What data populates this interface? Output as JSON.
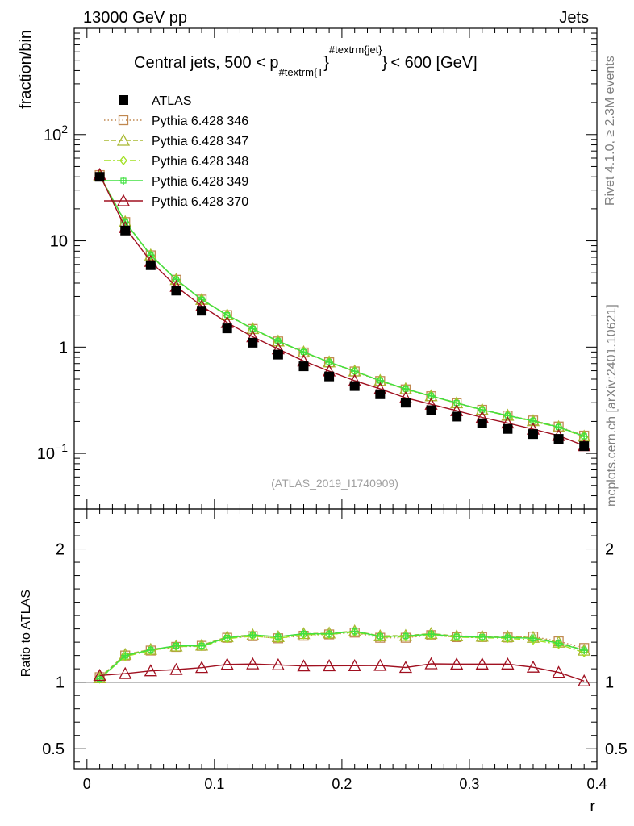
{
  "header": {
    "energy_label": "13000 GeV pp",
    "process_label": "Jets",
    "rivet_label": "Rivet 4.1.0, ≥ 2.3M events",
    "source_label": "mcplots.cern.ch [arXiv:2401.10621]",
    "analysis_label": "(ATLAS_2019_I1740909)"
  },
  "chart_data": {
    "type": "line",
    "title": "Central jets, 500 < p",
    "title_sub": "#textrm{T",
    "title_sup": "#textrm{jet}",
    "title_end": "< 600 [GeV]",
    "xlabel": "r",
    "ylabel": "fraction/bin",
    "ratio_ylabel": "Ratio to ATLAS",
    "xlim": [
      -0.01,
      0.4
    ],
    "ylim": [
      0.03,
      1000
    ],
    "ratio_ylim": [
      0.35,
      2.3
    ],
    "yscale": "log",
    "x_ticks": [
      "0",
      "0.1",
      "0.2",
      "0.3",
      "0.4"
    ],
    "ratio_ticks": [
      "0.5",
      "1",
      "2"
    ],
    "x": [
      0.01,
      0.03,
      0.05,
      0.07,
      0.09,
      0.11,
      0.13,
      0.15,
      0.17,
      0.19,
      0.21,
      0.23,
      0.25,
      0.27,
      0.29,
      0.31,
      0.33,
      0.35,
      0.37,
      0.39
    ],
    "data": {
      "name": "ATLAS",
      "color": "#000000",
      "values": [
        40,
        12.5,
        5.9,
        3.4,
        2.2,
        1.5,
        1.1,
        0.85,
        0.66,
        0.53,
        0.43,
        0.36,
        0.3,
        0.255,
        0.222,
        0.192,
        0.17,
        0.152,
        0.137,
        0.117
      ]
    },
    "series": [
      {
        "name": "Pythia 6.428 346",
        "color": "#c08850",
        "marker": "square",
        "dash": "1.5,3",
        "values": [
          41.5,
          15.0,
          7.3,
          4.3,
          2.8,
          2.0,
          1.48,
          1.13,
          0.89,
          0.72,
          0.59,
          0.48,
          0.4,
          0.345,
          0.297,
          0.257,
          0.227,
          0.204,
          0.179,
          0.147
        ]
      },
      {
        "name": "Pythia 6.428 347",
        "color": "#a8b830",
        "marker": "triangle",
        "dash": "6,3",
        "values": [
          41.3,
          15.1,
          7.35,
          4.32,
          2.81,
          2.01,
          1.49,
          1.14,
          0.9,
          0.725,
          0.595,
          0.485,
          0.405,
          0.348,
          0.299,
          0.258,
          0.228,
          0.203,
          0.178,
          0.145
        ]
      },
      {
        "name": "Pythia 6.428 348",
        "color": "#a0e020",
        "marker": "diamond",
        "dash": "8,3,2,3",
        "values": [
          41.0,
          14.9,
          7.3,
          4.31,
          2.79,
          1.99,
          1.48,
          1.13,
          0.895,
          0.72,
          0.592,
          0.482,
          0.402,
          0.345,
          0.297,
          0.256,
          0.226,
          0.2,
          0.176,
          0.143
        ]
      },
      {
        "name": "Pythia 6.428 349",
        "color": "#40e040",
        "marker": "plus",
        "dash": "",
        "values": [
          41.0,
          15.0,
          7.33,
          4.33,
          2.8,
          2.0,
          1.49,
          1.14,
          0.9,
          0.722,
          0.594,
          0.484,
          0.404,
          0.347,
          0.298,
          0.257,
          0.227,
          0.202,
          0.177,
          0.145
        ]
      },
      {
        "name": "Pythia 6.428 370",
        "color": "#a01020",
        "marker": "triangle",
        "dash": "",
        "values": [
          42.0,
          13.3,
          6.4,
          3.72,
          2.44,
          1.7,
          1.25,
          0.96,
          0.74,
          0.595,
          0.483,
          0.405,
          0.333,
          0.29,
          0.252,
          0.218,
          0.193,
          0.169,
          0.147,
          0.118
        ]
      }
    ]
  }
}
